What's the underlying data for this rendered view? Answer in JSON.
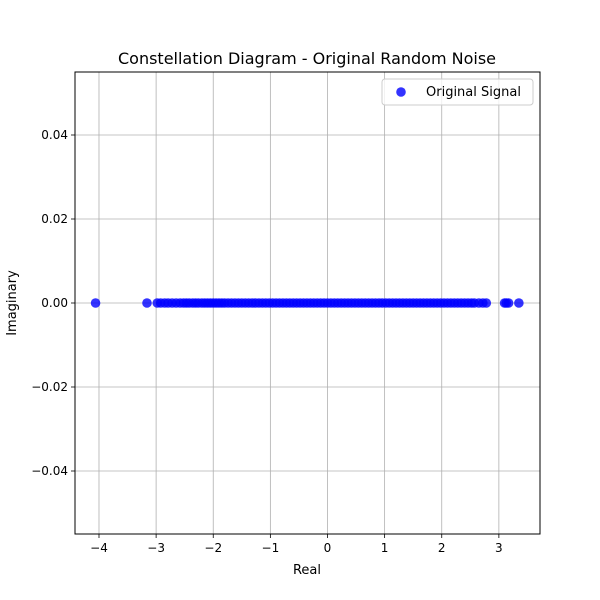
{
  "chart_data": {
    "type": "scatter",
    "title": "Constellation Diagram - Original Random Noise",
    "xlabel": "Real",
    "ylabel": "Imaginary",
    "xlim": [
      -4.42,
      3.72
    ],
    "ylim": [
      -0.055,
      0.055
    ],
    "xticks": [
      -4,
      -3,
      -2,
      -1,
      0,
      1,
      2,
      3
    ],
    "yticks": [
      -0.04,
      -0.02,
      0.0,
      0.02,
      0.04
    ],
    "xtick_labels": [
      "−4",
      "−3",
      "−2",
      "−1",
      "0",
      "1",
      "2",
      "3"
    ],
    "ytick_labels": [
      "−0.04",
      "−0.02",
      "0.00",
      "0.02",
      "0.04"
    ],
    "grid": true,
    "legend_position": "top-right",
    "series": [
      {
        "name": "Original Signal",
        "color": "#0000ff",
        "marker": "circle",
        "alpha": 0.8,
        "x": [
          -4.06,
          -3.16,
          -2.98,
          -2.92,
          -2.85,
          -2.79,
          -2.72,
          -2.65,
          -2.58,
          -2.52,
          -2.47,
          -2.42,
          -2.36,
          -2.31,
          -2.26,
          -2.2,
          -2.15,
          -2.1,
          -2.05,
          -2.0,
          -1.95,
          -1.9,
          -1.85,
          -1.8,
          -1.74,
          -1.68,
          -1.62,
          -1.56,
          -1.5,
          -1.44,
          -1.38,
          -1.32,
          -1.26,
          -1.2,
          -1.14,
          -1.08,
          -1.02,
          -0.96,
          -0.9,
          -0.84,
          -0.78,
          -0.72,
          -0.66,
          -0.6,
          -0.54,
          -0.48,
          -0.42,
          -0.36,
          -0.3,
          -0.24,
          -0.18,
          -0.12,
          -0.06,
          0.0,
          0.06,
          0.12,
          0.18,
          0.24,
          0.3,
          0.36,
          0.42,
          0.48,
          0.54,
          0.6,
          0.66,
          0.72,
          0.78,
          0.84,
          0.9,
          0.96,
          1.02,
          1.08,
          1.14,
          1.2,
          1.26,
          1.32,
          1.38,
          1.44,
          1.5,
          1.56,
          1.62,
          1.68,
          1.74,
          1.8,
          1.86,
          1.92,
          1.98,
          2.04,
          2.1,
          2.16,
          2.22,
          2.28,
          2.34,
          2.4,
          2.46,
          2.52,
          2.57,
          2.65,
          2.72,
          2.78,
          3.1,
          3.13,
          3.17,
          3.35
        ],
        "y": [
          0,
          0,
          0,
          0,
          0,
          0,
          0,
          0,
          0,
          0,
          0,
          0,
          0,
          0,
          0,
          0,
          0,
          0,
          0,
          0,
          0,
          0,
          0,
          0,
          0,
          0,
          0,
          0,
          0,
          0,
          0,
          0,
          0,
          0,
          0,
          0,
          0,
          0,
          0,
          0,
          0,
          0,
          0,
          0,
          0,
          0,
          0,
          0,
          0,
          0,
          0,
          0,
          0,
          0,
          0,
          0,
          0,
          0,
          0,
          0,
          0,
          0,
          0,
          0,
          0,
          0,
          0,
          0,
          0,
          0,
          0,
          0,
          0,
          0,
          0,
          0,
          0,
          0,
          0,
          0,
          0,
          0,
          0,
          0,
          0,
          0,
          0,
          0,
          0,
          0,
          0,
          0,
          0,
          0,
          0,
          0,
          0,
          0,
          0,
          0,
          0,
          0,
          0,
          0
        ]
      }
    ]
  }
}
